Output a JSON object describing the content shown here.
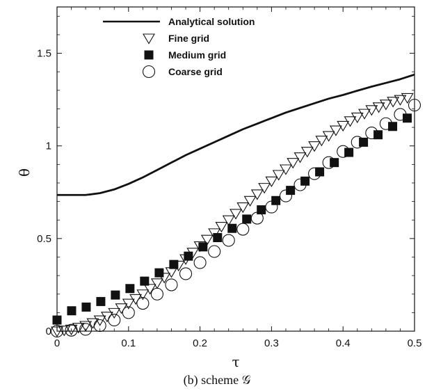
{
  "chart_data": {
    "type": "line",
    "title": "",
    "caption": "(b) scheme 𝒢",
    "xlabel": "τ",
    "ylabel": "θ",
    "xlim": [
      0,
      0.5
    ],
    "ylim": [
      0,
      1.75
    ],
    "xticks": [
      0,
      0.1,
      0.2,
      0.3,
      0.4,
      0.5
    ],
    "xtick_labels": [
      "0",
      "0.1",
      "0.2",
      "0.3",
      "0.4",
      "0.5"
    ],
    "yticks": [
      0,
      0.5,
      1,
      1.5
    ],
    "ytick_labels": [
      "0",
      "0.5",
      "1",
      "1.5"
    ],
    "grid": false,
    "legend_position": "top-left",
    "series": [
      {
        "name": "Analytical solution",
        "style": "line",
        "color": "#111111",
        "x": [
          0,
          0.02,
          0.04,
          0.06,
          0.08,
          0.1,
          0.12,
          0.14,
          0.16,
          0.18,
          0.2,
          0.22,
          0.24,
          0.26,
          0.28,
          0.3,
          0.32,
          0.34,
          0.36,
          0.38,
          0.4,
          0.42,
          0.44,
          0.46,
          0.48,
          0.5
        ],
        "y": [
          0.735,
          0.735,
          0.735,
          0.745,
          0.765,
          0.795,
          0.83,
          0.87,
          0.91,
          0.95,
          0.985,
          1.02,
          1.055,
          1.09,
          1.12,
          1.15,
          1.18,
          1.205,
          1.23,
          1.255,
          1.275,
          1.298,
          1.32,
          1.34,
          1.36,
          1.385
        ]
      },
      {
        "name": "Fine grid",
        "style": "marker",
        "marker": "triangle-down-open",
        "x": [
          0,
          0.01,
          0.02,
          0.03,
          0.04,
          0.05,
          0.06,
          0.07,
          0.08,
          0.09,
          0.1,
          0.11,
          0.12,
          0.13,
          0.14,
          0.15,
          0.16,
          0.17,
          0.18,
          0.19,
          0.2,
          0.21,
          0.22,
          0.23,
          0.24,
          0.25,
          0.26,
          0.27,
          0.28,
          0.29,
          0.3,
          0.31,
          0.32,
          0.33,
          0.34,
          0.35,
          0.36,
          0.37,
          0.38,
          0.39,
          0.4,
          0.41,
          0.42,
          0.43,
          0.44,
          0.45,
          0.46,
          0.47,
          0.48,
          0.49
        ],
        "y": [
          0.0,
          0.005,
          0.01,
          0.02,
          0.03,
          0.045,
          0.06,
          0.08,
          0.1,
          0.125,
          0.15,
          0.175,
          0.2,
          0.23,
          0.26,
          0.29,
          0.32,
          0.355,
          0.39,
          0.425,
          0.46,
          0.495,
          0.53,
          0.565,
          0.6,
          0.635,
          0.67,
          0.705,
          0.74,
          0.775,
          0.81,
          0.845,
          0.875,
          0.91,
          0.94,
          0.97,
          1.0,
          1.03,
          1.055,
          1.085,
          1.11,
          1.135,
          1.155,
          1.175,
          1.195,
          1.21,
          1.225,
          1.24,
          1.25,
          1.26
        ]
      },
      {
        "name": "Medium grid",
        "style": "marker",
        "marker": "square-filled",
        "x": [
          0,
          0.0204,
          0.0408,
          0.0612,
          0.0816,
          0.102,
          0.1224,
          0.1429,
          0.1633,
          0.1837,
          0.2041,
          0.2245,
          0.2449,
          0.2653,
          0.2857,
          0.3061,
          0.3265,
          0.3469,
          0.3673,
          0.3878,
          0.4082,
          0.4286,
          0.449,
          0.4694,
          0.4898
        ],
        "y": [
          0.06,
          0.11,
          0.13,
          0.16,
          0.195,
          0.23,
          0.27,
          0.315,
          0.36,
          0.405,
          0.455,
          0.505,
          0.555,
          0.605,
          0.655,
          0.705,
          0.76,
          0.81,
          0.86,
          0.91,
          0.965,
          1.02,
          1.06,
          1.105,
          1.15
        ]
      },
      {
        "name": "Coarse grid",
        "style": "marker",
        "marker": "circle-open",
        "x": [
          0,
          0.02,
          0.04,
          0.06,
          0.08,
          0.1,
          0.12,
          0.14,
          0.16,
          0.18,
          0.2,
          0.22,
          0.24,
          0.26,
          0.28,
          0.3,
          0.32,
          0.34,
          0.36,
          0.38,
          0.4,
          0.42,
          0.44,
          0.46,
          0.48,
          0.5
        ],
        "y": [
          0.0,
          0.005,
          0.01,
          0.03,
          0.06,
          0.1,
          0.15,
          0.2,
          0.25,
          0.31,
          0.37,
          0.43,
          0.49,
          0.55,
          0.61,
          0.67,
          0.73,
          0.79,
          0.85,
          0.91,
          0.97,
          1.02,
          1.07,
          1.12,
          1.17,
          1.22
        ]
      }
    ]
  }
}
